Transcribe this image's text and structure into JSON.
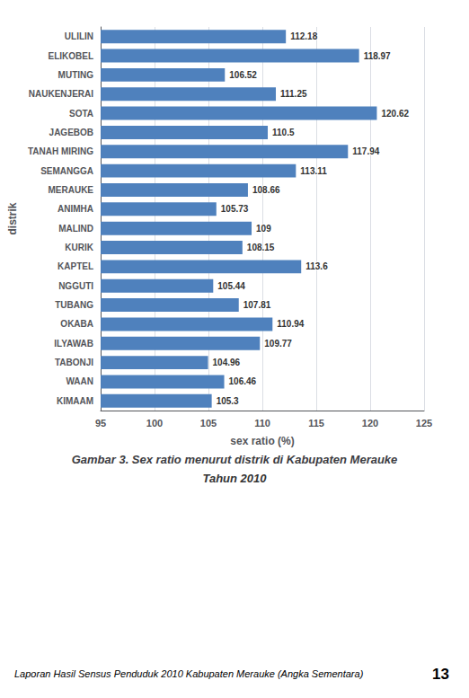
{
  "chart_data": {
    "type": "bar",
    "orientation": "horizontal",
    "title": "Gambar 3. Sex ratio menurut distrik di Kabupaten Merauke",
    "subtitle": "Tahun 2010",
    "annotations": [
      "Laporan Hasil Sensus Penduduk 2010 Kabupaten Merauke (Angka Sementara)",
      "13"
    ],
    "categories": [
      "ULILIN",
      "ELIKOBEL",
      "MUTING",
      "NAUKENJERAI",
      "SOTA",
      "JAGEBOB",
      "TANAH MIRING",
      "SEMANGGA",
      "MERAUKE",
      "ANIMHA",
      "MALIND",
      "KURIK",
      "KAPTEL",
      "NGGUTI",
      "TUBANG",
      "OKABA",
      "ILYAWAB",
      "TABONJI",
      "WAAN",
      "KIMAAM"
    ],
    "values": [
      112.18,
      118.97,
      106.52,
      111.25,
      120.62,
      110.5,
      117.94,
      113.11,
      108.66,
      105.73,
      109.0,
      108.15,
      113.6,
      105.44,
      107.81,
      110.94,
      109.77,
      104.96,
      106.46,
      105.3
    ],
    "color": "#4F81BD",
    "xlabel": "sex ratio (%)",
    "ylabel": "distrik",
    "xlim": [
      95,
      125
    ],
    "xticks": [
      95,
      100,
      105,
      110,
      115,
      120,
      125
    ],
    "grid": true,
    "data_labels": true
  }
}
